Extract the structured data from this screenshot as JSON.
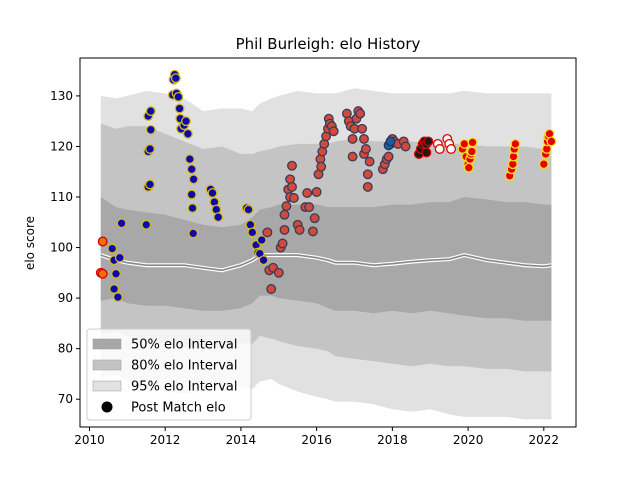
{
  "chart_data": {
    "type": "scatter",
    "title": "Phil Burleigh: elo History",
    "xlabel": "",
    "ylabel": "elo score",
    "xlim": [
      2009.75,
      2022.85
    ],
    "ylim": [
      64.5,
      137.5
    ],
    "x_ticks": [
      2010,
      2012,
      2014,
      2016,
      2018,
      2020,
      2022
    ],
    "y_ticks": [
      70,
      80,
      90,
      100,
      110,
      120,
      130
    ],
    "grid": false,
    "legend_position": "lower-left",
    "legend": [
      {
        "label": "50% elo Interval",
        "color": "#a8a8a8"
      },
      {
        "label": "80% elo Interval",
        "color": "#c4c4c4"
      },
      {
        "label": "95% elo Interval",
        "color": "#e1e1e1"
      },
      {
        "label": "Post Match elo",
        "color": "#000000"
      }
    ],
    "colors": {
      "band_50": "#a8a8a8",
      "band_80": "#c4c4c4",
      "band_95": "#e1e1e1",
      "median_line": "#888888",
      "median_halo": "#ffffff",
      "navy_fill": "#0a0aa8",
      "navy_edge": "#d4b820",
      "rust_fill": "#d24b3a",
      "rust_edge": "#3a3a5a",
      "steel_fill": "#1f5a9a",
      "steel_edge": "#1f3a5a",
      "dark_fill": "#1a1a1a",
      "dark_edge": "#d40000",
      "red_fill": "#e80000",
      "red_edge": "#f0e020",
      "white_fill": "#ffffff",
      "white_edge": "#e00000",
      "orange_fill": "#f07000",
      "orange_edge": "#d40000"
    },
    "bands": {
      "x": [
        2010.3,
        2010.7,
        2011.0,
        2011.5,
        2012.0,
        2012.5,
        2013.0,
        2013.5,
        2014.0,
        2014.3,
        2014.5,
        2014.8,
        2015.0,
        2015.5,
        2016.0,
        2016.3,
        2016.5,
        2017.0,
        2017.5,
        2018.0,
        2018.5,
        2019.0,
        2019.5,
        2019.9,
        2020.5,
        2021.0,
        2021.5,
        2022.0,
        2022.2
      ],
      "median": [
        98.5,
        97.5,
        97.0,
        96.5,
        96.5,
        96.5,
        96.0,
        95.5,
        96.5,
        97.5,
        98.5,
        98.5,
        98.5,
        98.5,
        98.0,
        97.5,
        97.0,
        97.0,
        96.5,
        96.8,
        97.2,
        97.5,
        97.7,
        98.5,
        97.5,
        97.0,
        96.5,
        96.3,
        96.5
      ],
      "p50_low": [
        89.5,
        90.0,
        89.0,
        88.5,
        88.5,
        88.0,
        87.5,
        87.5,
        88.0,
        89.0,
        90.5,
        90.5,
        90.0,
        89.5,
        89.0,
        88.0,
        87.5,
        87.5,
        87.0,
        87.5,
        87.0,
        87.5,
        87.0,
        86.5,
        86.0,
        86.0,
        85.5,
        85.5,
        85.5
      ],
      "p50_high": [
        110.0,
        108.0,
        107.5,
        107.0,
        106.5,
        105.5,
        104.5,
        104.0,
        104.5,
        106.0,
        107.5,
        108.0,
        108.5,
        108.5,
        108.5,
        108.0,
        108.0,
        108.0,
        108.0,
        108.5,
        108.5,
        109.0,
        109.0,
        110.0,
        109.5,
        109.0,
        109.0,
        108.5,
        108.5
      ],
      "p80_low": [
        83.0,
        83.5,
        82.5,
        81.5,
        81.0,
        80.5,
        80.0,
        80.5,
        81.0,
        81.0,
        82.5,
        82.0,
        81.5,
        80.5,
        80.0,
        79.5,
        78.5,
        78.0,
        77.5,
        77.0,
        76.5,
        77.0,
        76.5,
        76.5,
        76.0,
        76.0,
        75.5,
        75.5,
        75.5
      ],
      "p80_high": [
        124.5,
        123.5,
        124.0,
        124.0,
        122.5,
        121.0,
        119.5,
        120.0,
        118.5,
        118.5,
        119.0,
        119.5,
        120.0,
        120.5,
        120.5,
        120.5,
        121.0,
        121.5,
        121.0,
        121.0,
        121.0,
        120.5,
        120.5,
        120.5,
        120.0,
        120.0,
        120.0,
        119.5,
        119.5
      ],
      "p95_low": [
        74.0,
        75.0,
        73.5,
        72.0,
        71.5,
        71.0,
        71.5,
        72.5,
        72.5,
        72.0,
        73.5,
        74.0,
        73.0,
        71.5,
        70.5,
        70.0,
        69.5,
        69.5,
        69.0,
        68.0,
        67.5,
        68.0,
        67.0,
        66.5,
        66.5,
        66.5,
        66.0,
        66.0,
        66.0
      ],
      "p95_high": [
        130.0,
        129.5,
        130.0,
        131.0,
        130.5,
        129.5,
        127.0,
        127.5,
        127.5,
        127.0,
        128.5,
        129.5,
        130.0,
        131.0,
        130.5,
        130.5,
        130.5,
        131.5,
        131.0,
        130.5,
        130.5,
        130.5,
        130.5,
        131.0,
        130.5,
        130.5,
        130.5,
        130.5,
        130.5
      ]
    },
    "series": [
      {
        "style": "orange",
        "points": [
          [
            2010.3,
            95.0
          ],
          [
            2010.35,
            94.8
          ],
          [
            2010.35,
            101.2
          ]
        ]
      },
      {
        "style": "navy",
        "points": [
          [
            2010.6,
            99.8
          ],
          [
            2010.65,
            97.5
          ],
          [
            2010.65,
            91.8
          ],
          [
            2010.7,
            94.8
          ],
          [
            2010.75,
            90.2
          ],
          [
            2010.8,
            98.0
          ],
          [
            2010.85,
            104.8
          ],
          [
            2011.5,
            104.5
          ],
          [
            2011.55,
            112.0
          ],
          [
            2011.6,
            112.5
          ],
          [
            2011.55,
            119.0
          ],
          [
            2011.6,
            119.5
          ],
          [
            2011.55,
            126.0
          ],
          [
            2011.62,
            127.0
          ],
          [
            2011.62,
            123.3
          ],
          [
            2012.2,
            130.2
          ],
          [
            2012.22,
            133.2
          ],
          [
            2012.25,
            134.2
          ],
          [
            2012.28,
            133.5
          ],
          [
            2012.3,
            130.5
          ],
          [
            2012.35,
            129.8
          ],
          [
            2012.38,
            127.5
          ],
          [
            2012.4,
            125.5
          ],
          [
            2012.42,
            123.5
          ],
          [
            2012.5,
            124.2
          ],
          [
            2012.55,
            125.0
          ],
          [
            2012.6,
            122.5
          ],
          [
            2012.65,
            117.5
          ],
          [
            2012.7,
            115.5
          ],
          [
            2012.75,
            113.5
          ],
          [
            2012.7,
            110.5
          ],
          [
            2012.72,
            107.8
          ],
          [
            2012.74,
            102.8
          ],
          [
            2013.2,
            111.5
          ],
          [
            2013.25,
            110.8
          ],
          [
            2013.3,
            109.0
          ],
          [
            2013.35,
            107.5
          ],
          [
            2013.4,
            106.0
          ],
          [
            2014.15,
            107.8
          ],
          [
            2014.2,
            107.5
          ],
          [
            2014.25,
            104.5
          ],
          [
            2014.3,
            103.0
          ],
          [
            2014.4,
            100.5
          ],
          [
            2014.45,
            99.0
          ],
          [
            2014.5,
            98.8
          ],
          [
            2014.55,
            101.5
          ],
          [
            2014.6,
            97.5
          ]
        ]
      },
      {
        "style": "rust",
        "points": [
          [
            2014.7,
            103.0
          ],
          [
            2014.75,
            95.5
          ],
          [
            2014.8,
            91.8
          ],
          [
            2014.85,
            96.0
          ],
          [
            2015.0,
            95.0
          ],
          [
            2015.05,
            100.0
          ],
          [
            2015.1,
            100.8
          ],
          [
            2015.15,
            103.5
          ],
          [
            2015.15,
            106.5
          ],
          [
            2015.2,
            108.2
          ],
          [
            2015.25,
            111.5
          ],
          [
            2015.3,
            113.5
          ],
          [
            2015.3,
            110.0
          ],
          [
            2015.35,
            116.2
          ],
          [
            2015.35,
            112.0
          ],
          [
            2015.4,
            109.8
          ],
          [
            2015.5,
            104.5
          ],
          [
            2015.55,
            103.5
          ],
          [
            2015.7,
            108.0
          ],
          [
            2015.75,
            110.8
          ],
          [
            2015.8,
            108.0
          ],
          [
            2015.9,
            103.2
          ],
          [
            2015.95,
            105.8
          ],
          [
            2016.0,
            111.0
          ],
          [
            2016.05,
            114.5
          ],
          [
            2016.1,
            117.5
          ],
          [
            2016.12,
            116.0
          ],
          [
            2016.15,
            119.0
          ],
          [
            2016.2,
            120.5
          ],
          [
            2016.25,
            122.0
          ],
          [
            2016.3,
            123.5
          ],
          [
            2016.32,
            125.5
          ],
          [
            2016.35,
            124.5
          ],
          [
            2016.4,
            124.0
          ],
          [
            2016.45,
            123.0
          ],
          [
            2016.8,
            126.5
          ],
          [
            2016.85,
            125.0
          ],
          [
            2016.9,
            124.0
          ],
          [
            2016.95,
            118.0
          ],
          [
            2016.95,
            121.5
          ],
          [
            2017.0,
            123.5
          ],
          [
            2017.05,
            125.5
          ],
          [
            2017.1,
            127.0
          ],
          [
            2017.15,
            126.5
          ],
          [
            2017.2,
            123.5
          ],
          [
            2017.25,
            121.5
          ],
          [
            2017.25,
            118.5
          ],
          [
            2017.3,
            119.5
          ],
          [
            2017.35,
            112.0
          ],
          [
            2017.35,
            114.5
          ],
          [
            2017.4,
            117.0
          ],
          [
            2017.75,
            115.5
          ],
          [
            2017.8,
            116.5
          ],
          [
            2017.85,
            117.5
          ],
          [
            2017.9,
            118.0
          ],
          [
            2017.95,
            120.5
          ],
          [
            2018.0,
            121.5
          ],
          [
            2018.05,
            121.0
          ],
          [
            2018.15,
            120.5
          ],
          [
            2018.3,
            121.0
          ],
          [
            2018.35,
            120.0
          ]
        ]
      },
      {
        "style": "steel",
        "points": [
          [
            2017.9,
            120.2
          ],
          [
            2017.95,
            121.0
          ]
        ]
      },
      {
        "style": "dark",
        "points": [
          [
            2018.7,
            118.5
          ],
          [
            2018.75,
            119.5
          ],
          [
            2018.8,
            120.5
          ],
          [
            2018.85,
            121.0
          ],
          [
            2018.9,
            120.5
          ],
          [
            2018.95,
            121.0
          ],
          [
            2018.9,
            118.8
          ]
        ]
      },
      {
        "style": "white",
        "points": [
          [
            2019.2,
            120.5
          ],
          [
            2019.25,
            119.5
          ],
          [
            2019.45,
            121.5
          ],
          [
            2019.5,
            120.5
          ],
          [
            2019.55,
            119.5
          ]
        ]
      },
      {
        "style": "red",
        "points": [
          [
            2019.85,
            119.5
          ],
          [
            2019.9,
            120.5
          ],
          [
            2019.95,
            118.0
          ],
          [
            2020.0,
            116.5
          ],
          [
            2020.02,
            115.8
          ],
          [
            2020.05,
            117.5
          ],
          [
            2020.08,
            118.5
          ],
          [
            2020.1,
            119.0
          ],
          [
            2020.12,
            120.8
          ],
          [
            2021.1,
            114.2
          ],
          [
            2021.15,
            115.5
          ],
          [
            2021.18,
            116.5
          ],
          [
            2021.2,
            118.0
          ],
          [
            2021.22,
            119.5
          ],
          [
            2021.25,
            120.5
          ],
          [
            2022.0,
            116.5
          ],
          [
            2022.05,
            118.5
          ],
          [
            2022.08,
            119.5
          ],
          [
            2022.1,
            121.0
          ],
          [
            2022.12,
            122.0
          ],
          [
            2022.15,
            122.5
          ],
          [
            2022.2,
            121.0
          ]
        ]
      }
    ]
  }
}
